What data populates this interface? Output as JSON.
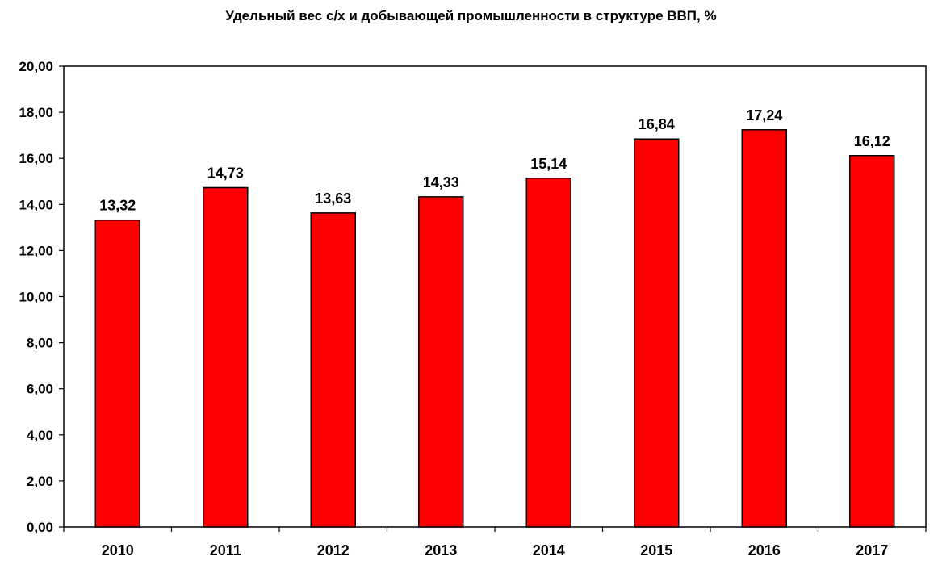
{
  "chart_data": {
    "type": "bar",
    "title": "Удельный вес с/х и добывающей промышленности в структуре ВВП, %",
    "categories": [
      "2010",
      "2011",
      "2012",
      "2013",
      "2014",
      "2015",
      "2016",
      "2017"
    ],
    "values": [
      13.32,
      14.73,
      13.63,
      14.33,
      15.14,
      16.84,
      17.24,
      16.12
    ],
    "value_labels": [
      "13,32",
      "14,73",
      "13,63",
      "14,33",
      "15,14",
      "16,84",
      "17,24",
      "16,12"
    ],
    "y_ticks": [
      0,
      2,
      4,
      6,
      8,
      10,
      12,
      14,
      16,
      18,
      20
    ],
    "y_tick_labels": [
      "0,00",
      "2,00",
      "4,00",
      "6,00",
      "8,00",
      "10,00",
      "12,00",
      "14,00",
      "16,00",
      "18,00",
      "20,00"
    ],
    "ylim": [
      0,
      20
    ],
    "xlabel": "",
    "ylabel": "",
    "grid": false,
    "legend": "none",
    "colors": {
      "bar_fill": "#ff0000",
      "bar_stroke": "#000000",
      "axis": "#000000",
      "plot_border": "#000000",
      "text": "#000000"
    }
  }
}
